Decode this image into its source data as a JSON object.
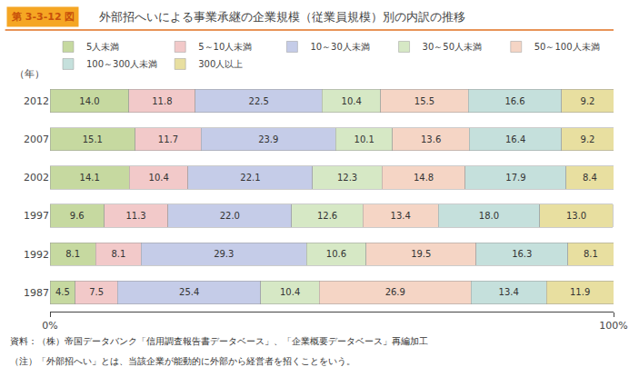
{
  "chart_data": {
    "type": "bar",
    "orientation": "horizontal",
    "stacked": true,
    "title": "外部招へいによる事業承継の企業規模（従業員規模）別の内訳の推移",
    "ylabel": "（年）",
    "annotations": [
      "第 3-3-12 図",
      "資料：（株）帝国データバンク「信用調査報告書データベース」、「企業概要データベース」再編加工",
      "（注）「外部招へい」とは、当該企業が能動的に外部から経営者を招くことをいう。"
    ],
    "categories": [
      "2012",
      "2007",
      "2002",
      "1997",
      "1992",
      "1987"
    ],
    "series": [
      {
        "name": "5人未満",
        "color": "#c6d9a0",
        "values": [
          14.0,
          15.1,
          14.1,
          9.6,
          8.1,
          4.5
        ],
        "value_labels": [
          "14.0",
          "15.1",
          "14.1",
          "9.6",
          "8.1",
          "4.5"
        ]
      },
      {
        "name": "5～10人未満",
        "color": "#f2c9c9",
        "values": [
          11.8,
          11.7,
          10.4,
          11.3,
          8.1,
          7.5
        ],
        "value_labels": [
          "11.8",
          "11.7",
          "10.4",
          "11.3",
          "8.1",
          "7.5"
        ]
      },
      {
        "name": "10～30人未満",
        "color": "#c5cce8",
        "values": [
          22.5,
          23.9,
          22.1,
          22.0,
          29.3,
          25.4
        ],
        "value_labels": [
          "22.5",
          "23.9",
          "22.1",
          "22.0",
          "29.3",
          "25.4"
        ]
      },
      {
        "name": "30～50人未満",
        "color": "#d6e8c5",
        "values": [
          10.4,
          10.1,
          12.3,
          12.6,
          10.6,
          10.4
        ],
        "value_labels": [
          "10.4",
          "10.1",
          "12.3",
          "12.6",
          "10.6",
          "10.4"
        ]
      },
      {
        "name": "50～100人未満",
        "color": "#f5d5c5",
        "values": [
          15.5,
          13.6,
          14.8,
          13.4,
          19.5,
          26.9
        ],
        "value_labels": [
          "15.5",
          "13.6",
          "14.8",
          "13.4",
          "19.5",
          "26.9"
        ]
      },
      {
        "name": "100～300人未満",
        "color": "#c5e0dc",
        "values": [
          16.6,
          16.4,
          17.9,
          18.0,
          16.3,
          13.4
        ],
        "value_labels": [
          "16.6",
          "16.4",
          "17.9",
          "18.0",
          "16.3",
          "13.4"
        ]
      },
      {
        "name": "300人以上",
        "color": "#e8dfa0",
        "values": [
          9.2,
          9.2,
          8.4,
          13.0,
          8.1,
          11.9
        ],
        "value_labels": [
          "9.2",
          "9.2",
          "8.4",
          "13.0",
          "8.1",
          "11.9"
        ]
      }
    ],
    "xlim": [
      0,
      100
    ],
    "xticks": [
      {
        "value": 0,
        "label": "0%"
      },
      {
        "value": 100,
        "label": "100%"
      }
    ],
    "grid": false,
    "legend": "top",
    "data_labels": true
  }
}
